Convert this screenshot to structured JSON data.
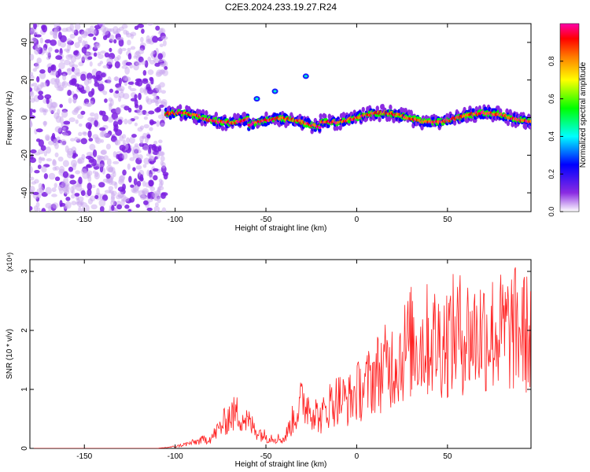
{
  "title": "C2E3.2024.233.19.27.R24",
  "chart_data": [
    {
      "type": "heatmap",
      "xlabel": "Height of straight line (km)",
      "ylabel": "Frequency (Hz)",
      "xlim": [
        -180,
        96
      ],
      "ylim": [
        -50,
        50
      ],
      "xticks": [
        -150,
        -100,
        -50,
        0,
        50
      ],
      "yticks": [
        -40,
        -20,
        0,
        20,
        40
      ],
      "colorbar": {
        "label": "Normalized spectral amplitude",
        "range": [
          0,
          1
        ],
        "ticks": [
          "0.0",
          "0.2",
          "0.4",
          "0.6",
          "0.8"
        ],
        "colors": [
          "#ffffff",
          "#8a2be2",
          "#0000ff",
          "#00ffff",
          "#00ff00",
          "#ffff00",
          "#ff8000",
          "#ff0000",
          "#ff00aa"
        ]
      },
      "noise_region_x": [
        -180,
        -105
      ],
      "signal_band_center_hz": 0,
      "extra_features": [
        {
          "x": -55,
          "y": 10
        },
        {
          "x": -45,
          "y": 14
        },
        {
          "x": -28,
          "y": 22
        }
      ]
    },
    {
      "type": "line",
      "xlabel": "Height of straight line (km)",
      "ylabel": "SNR (10 * v/v)",
      "yscale_label": "(x10⁴)",
      "xlim": [
        -180,
        96
      ],
      "ylim": [
        0,
        3.2
      ],
      "xticks": [
        -150,
        -100,
        -50,
        0,
        50
      ],
      "yticks": [
        0,
        1,
        2,
        3
      ],
      "series": [
        {
          "color": "#ff2020",
          "x": [
            -180,
            -110,
            -100,
            -90,
            -80,
            -70,
            -65,
            -60,
            -55,
            -50,
            -45,
            -40,
            -35,
            -30,
            -25,
            -20,
            -15,
            -10,
            -5,
            0,
            5,
            10,
            15,
            20,
            25,
            30,
            35,
            40,
            45,
            50,
            55,
            60,
            65,
            70,
            75,
            80,
            85,
            90,
            96
          ],
          "y": [
            0.0,
            0.0,
            0.03,
            0.1,
            0.18,
            0.55,
            0.6,
            0.45,
            0.3,
            0.2,
            0.18,
            0.15,
            0.5,
            0.8,
            0.7,
            0.5,
            0.75,
            0.85,
            0.8,
            0.95,
            1.05,
            1.25,
            1.35,
            1.45,
            1.6,
            1.8,
            1.75,
            1.85,
            1.8,
            1.85,
            1.95,
            1.95,
            1.9,
            2.0,
            1.95,
            1.95,
            2.0,
            2.0,
            1.9
          ]
        }
      ]
    }
  ]
}
